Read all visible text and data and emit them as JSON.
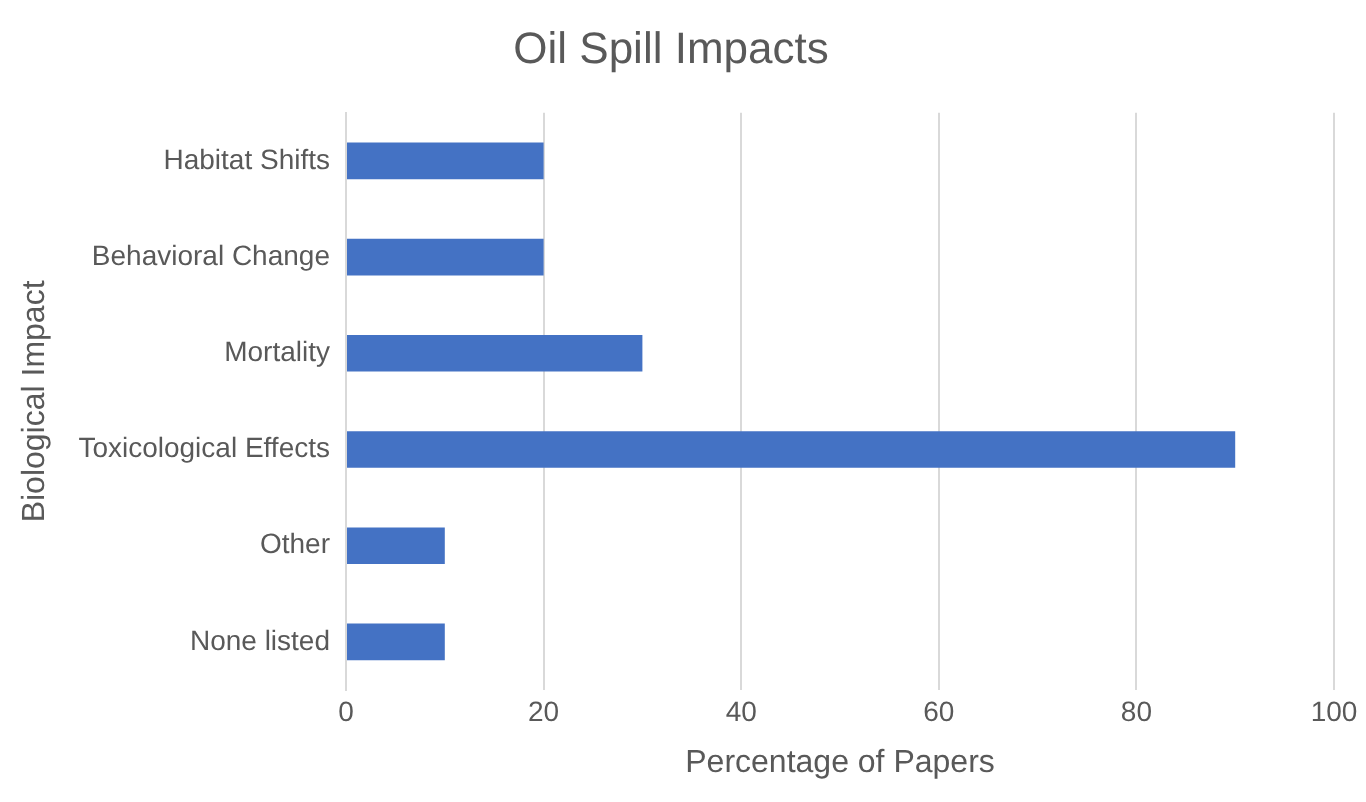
{
  "chart_data": {
    "type": "bar",
    "orientation": "horizontal",
    "title": "Oil Spill Impacts",
    "xlabel": "Percentage of Papers",
    "ylabel": "Biological Impact",
    "categories": [
      "Habitat Shifts",
      "Behavioral Change",
      "Mortality",
      "Toxicological Effects",
      "Other",
      "None listed"
    ],
    "values": [
      20,
      20,
      30,
      90,
      10,
      10
    ],
    "color": "#4472c4",
    "xlim": [
      0,
      100
    ],
    "xticks": [
      0,
      20,
      40,
      60,
      80,
      100
    ],
    "grid": "x",
    "legend": false
  }
}
